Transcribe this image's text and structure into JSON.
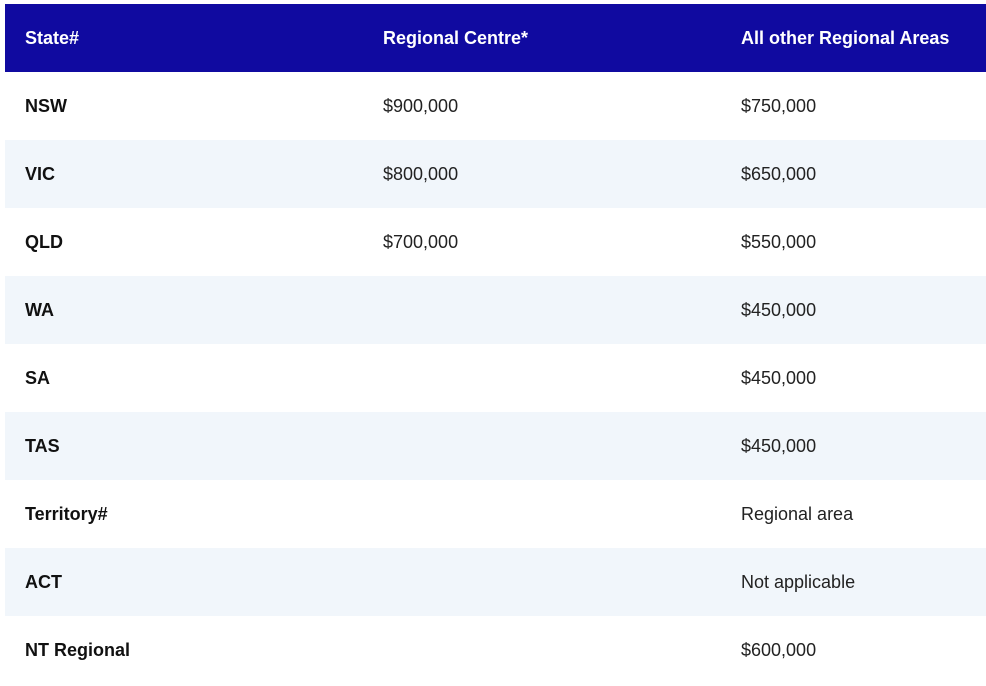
{
  "table": {
    "headers": [
      "State#",
      "Regional Centre*",
      "All other Regional Areas"
    ],
    "rows": [
      [
        "NSW",
        "$900,000",
        "$750,000"
      ],
      [
        "VIC",
        "$800,000",
        "$650,000"
      ],
      [
        "QLD",
        "$700,000",
        "$550,000"
      ],
      [
        "WA",
        "",
        "$450,000"
      ],
      [
        "SA",
        "",
        "$450,000"
      ],
      [
        "TAS",
        "",
        "$450,000"
      ],
      [
        "Territory#",
        "",
        "Regional area"
      ],
      [
        "ACT",
        "",
        "Not applicable"
      ],
      [
        "NT Regional",
        "",
        "$600,000"
      ]
    ]
  },
  "colors": {
    "header_bg": "#100aa0",
    "header_text": "#ffffff",
    "stripe_bg": "#f1f6fb"
  }
}
